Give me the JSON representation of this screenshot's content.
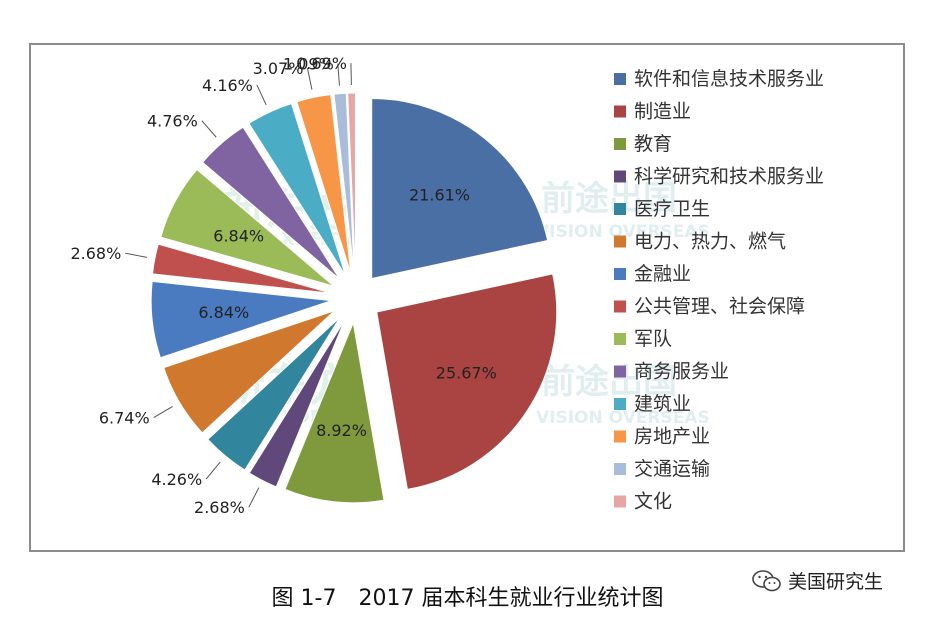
{
  "caption": "图 1-7　2017 届本科生就业行业统计图",
  "source": "美国研究生",
  "watermarks": {
    "xdf_cn": "新东方",
    "xdf_url": "XDF.CN",
    "vision_cn": "前途出国",
    "vision_en": "VISION OVERSEAS"
  },
  "chart_data": {
    "type": "pie",
    "title": "",
    "legend_position": "right",
    "categories": [
      "软件和信息技术服务业",
      "制造业",
      "教育",
      "科学研究和技术服务业",
      "医疗卫生",
      "电力、热力、燃气",
      "金融业",
      "公共管理、社会保障",
      "军队",
      "商务服务业",
      "建筑业",
      "房地产业",
      "交通运输",
      "文化"
    ],
    "values": [
      21.61,
      25.67,
      8.92,
      2.68,
      4.26,
      6.74,
      6.84,
      2.68,
      6.84,
      4.76,
      4.16,
      3.07,
      1.09,
      0.69
    ],
    "labels": [
      "21.61%",
      "25.67%",
      "8.92%",
      "2.68%",
      "4.26%",
      "6.74%",
      "6.84%",
      "2.68%",
      "6.84%",
      "4.76%",
      "4.16%",
      "3.07%",
      "1.09%",
      "0.69%"
    ],
    "colors": [
      "#4a6fa5",
      "#a94442",
      "#7f9a3c",
      "#60497a",
      "#31859c",
      "#d0782d",
      "#4a7bc0",
      "#c0504d",
      "#9bbb59",
      "#8064a2",
      "#4bacc6",
      "#f79646",
      "#a9bcd9",
      "#e6a6a6"
    ]
  }
}
